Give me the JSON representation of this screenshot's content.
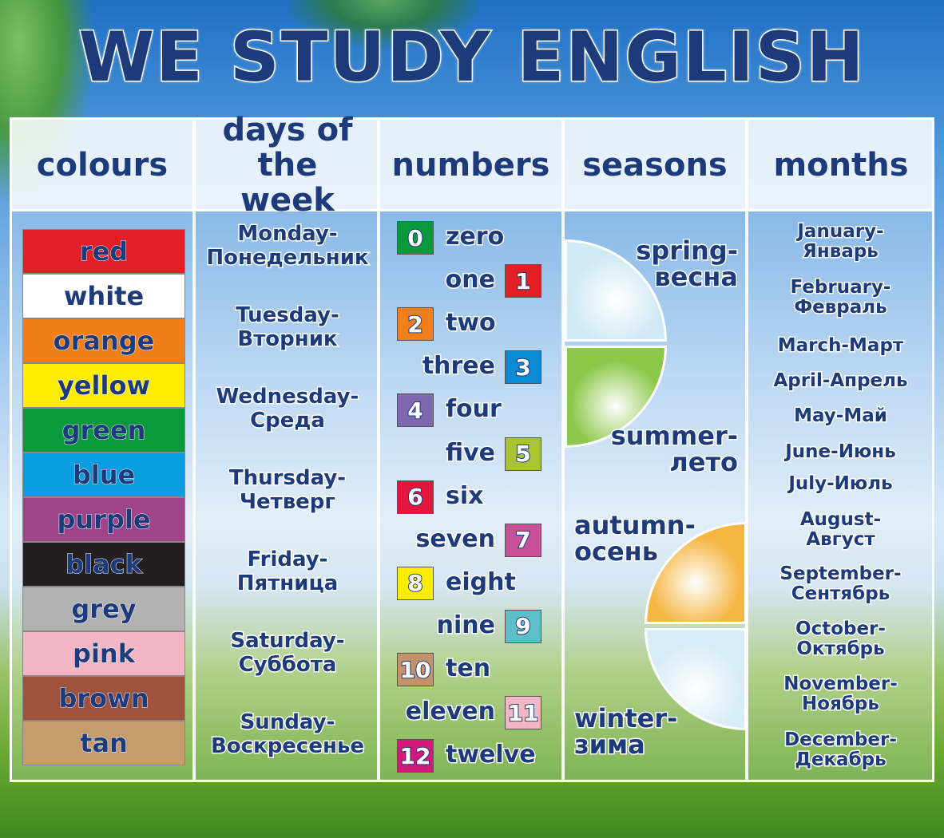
{
  "title": "WE STUDY ENGLISH",
  "headers": {
    "colours": "colours",
    "days": "days of the week",
    "numbers": "numbers",
    "seasons": "seasons",
    "months": "months"
  },
  "colours": [
    {
      "label": "red",
      "color": "#e31e24"
    },
    {
      "label": "white",
      "color": "#ffffff"
    },
    {
      "label": "orange",
      "color": "#f07f1a"
    },
    {
      "label": "yellow",
      "color": "#ffed00"
    },
    {
      "label": "green",
      "color": "#0a9a3c"
    },
    {
      "label": "blue",
      "color": "#0a9ee0"
    },
    {
      "label": "purple",
      "color": "#a0448a"
    },
    {
      "label": "black",
      "color": "#231f20"
    },
    {
      "label": "grey",
      "color": "#b2b2b2"
    },
    {
      "label": "pink",
      "color": "#f4b6c2"
    },
    {
      "label": "brown",
      "color": "#a0523d"
    },
    {
      "label": "tan",
      "color": "#c69c6d"
    }
  ],
  "days": [
    {
      "en": "Monday-",
      "ru": "Понедельник"
    },
    {
      "en": "Tuesday-",
      "ru": "Вторник"
    },
    {
      "en": "Wednesday-",
      "ru": "Среда"
    },
    {
      "en": "Thursday-",
      "ru": "Четверг"
    },
    {
      "en": "Friday-",
      "ru": "Пятница"
    },
    {
      "en": "Saturday-",
      "ru": "Суббота"
    },
    {
      "en": "Sunday-",
      "ru": "Воскресенье"
    }
  ],
  "numbers": [
    {
      "n": "0",
      "word": "zero",
      "color": "#0a9a3c"
    },
    {
      "n": "1",
      "word": "one",
      "color": "#e31e24"
    },
    {
      "n": "2",
      "word": "two",
      "color": "#f07f1a"
    },
    {
      "n": "3",
      "word": "three",
      "color": "#0a8ad6"
    },
    {
      "n": "4",
      "word": "four",
      "color": "#8068b0"
    },
    {
      "n": "5",
      "word": "five",
      "color": "#a8c436"
    },
    {
      "n": "6",
      "word": "six",
      "color": "#e3173e"
    },
    {
      "n": "7",
      "word": "seven",
      "color": "#c8509b"
    },
    {
      "n": "8",
      "word": "eight",
      "color": "#ffed00"
    },
    {
      "n": "9",
      "word": "nine",
      "color": "#5fbfc8"
    },
    {
      "n": "10",
      "word": "ten",
      "color": "#c4926a"
    },
    {
      "n": "11",
      "word": "eleven",
      "color": "#f4b6c2"
    },
    {
      "n": "12",
      "word": "twelve",
      "color": "#d6187a"
    }
  ],
  "seasons": [
    {
      "en": "spring-",
      "ru": "весна",
      "color": "#cfe9f5"
    },
    {
      "en": "summer-",
      "ru": "лето",
      "color": "#8cc84a"
    },
    {
      "en": "autumn-",
      "ru": "осень",
      "color": "#f5b642"
    },
    {
      "en": "winter-",
      "ru": "зима",
      "color": "#d7ecf7"
    }
  ],
  "months": [
    {
      "en": "January-",
      "ru": "Январь"
    },
    {
      "en": "February-",
      "ru": "Февраль"
    },
    {
      "en": "March-Март",
      "ru": ""
    },
    {
      "en": "April-Апрель",
      "ru": ""
    },
    {
      "en": "May-Май",
      "ru": ""
    },
    {
      "en": "June-Июнь",
      "ru": ""
    },
    {
      "en": "July-Июль",
      "ru": ""
    },
    {
      "en": "August-",
      "ru": "Август"
    },
    {
      "en": "September-",
      "ru": "Сентябрь"
    },
    {
      "en": "October-",
      "ru": "Октябрь"
    },
    {
      "en": "November-",
      "ru": "Ноябрь"
    },
    {
      "en": "December-",
      "ru": "Декабрь"
    }
  ]
}
